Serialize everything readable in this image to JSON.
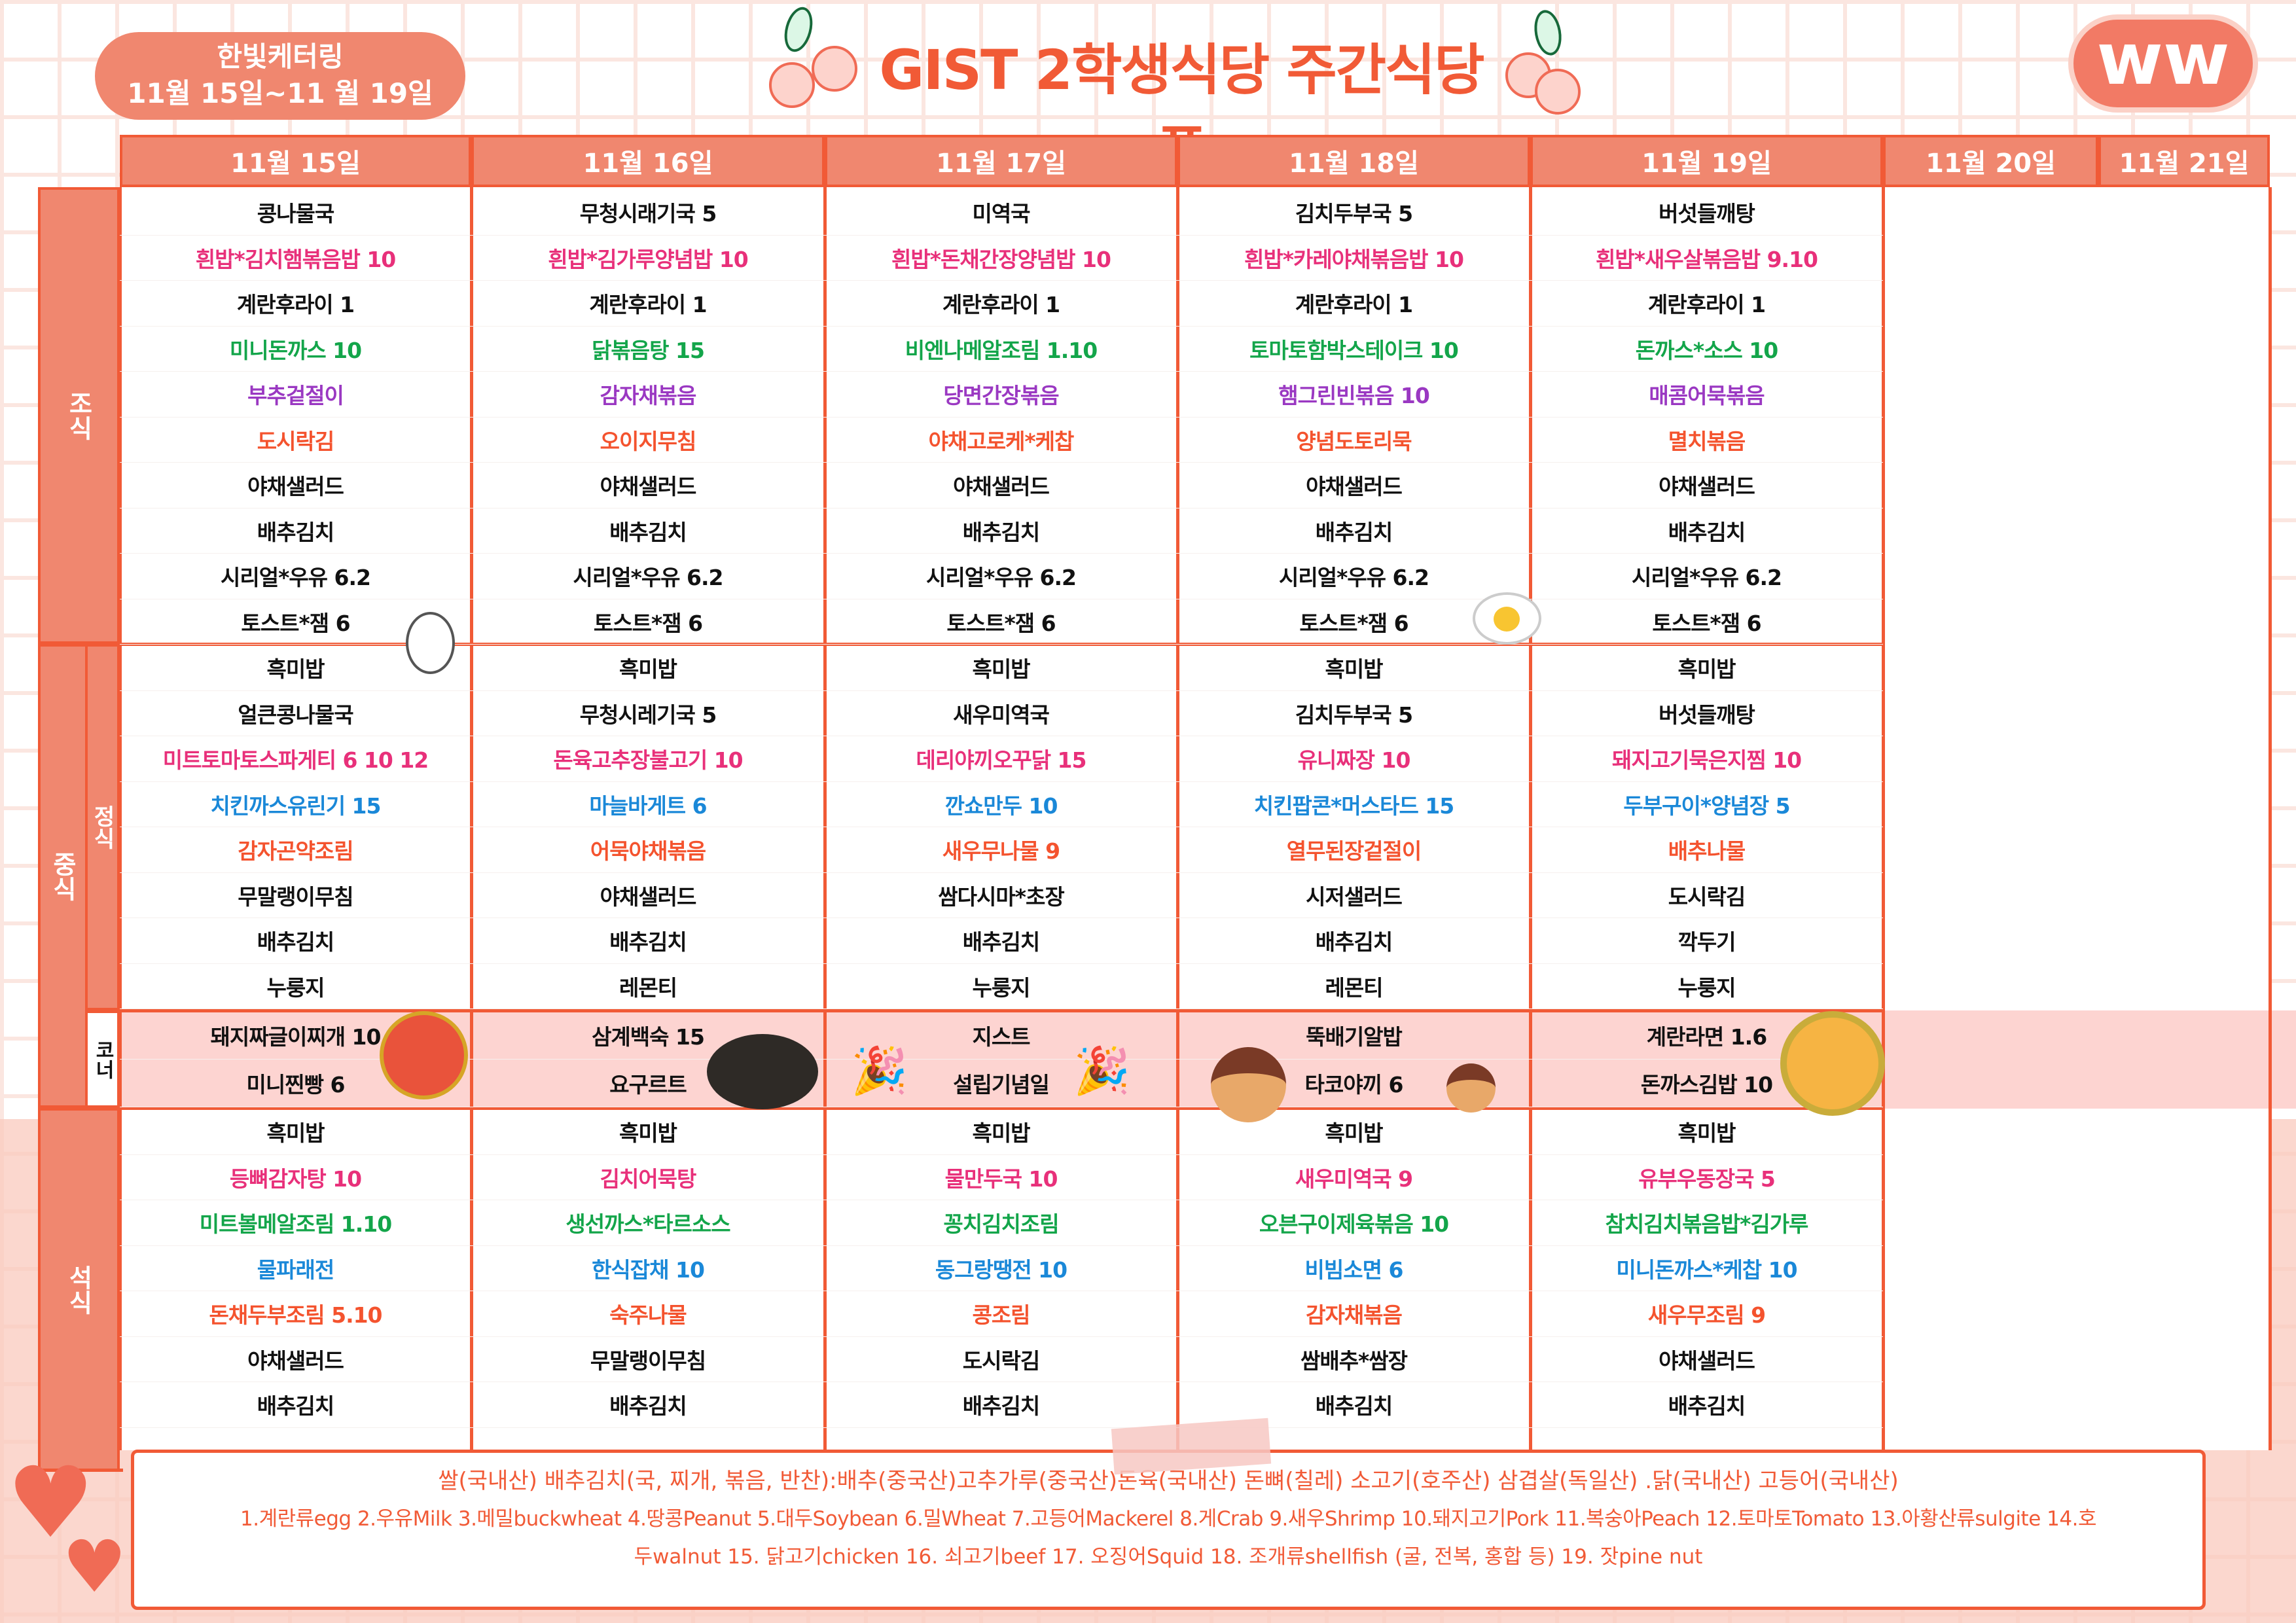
{
  "header": {
    "caterer": "한빛케터링",
    "period": "11월 15일~11 월 19일",
    "title": "GIST 2학생식당 주간식당표",
    "logo_text": "ww"
  },
  "colors": {
    "k": "#111111",
    "p": "#e8307a",
    "g": "#13a54a",
    "v": "#9a38c2",
    "o": "#f4532e",
    "b": "#1a88d8",
    "accent": "#f15a36",
    "header_fill": "#f0876f",
    "corner_fill": "#fdd4d1"
  },
  "days": [
    "11월 15일",
    "11월 16일",
    "11월 17일",
    "11월 18일",
    "11월 19일",
    "11월 20일",
    "11월 21일"
  ],
  "labels": {
    "breakfast": "조식",
    "lunch": "중식",
    "lunch_set": "정식",
    "lunch_corner": "코너",
    "dinner": "석식"
  },
  "breakfast": [
    [
      [
        "콩나물국",
        "k"
      ],
      [
        "흰밥*김치햄볶음밥 10",
        "p"
      ],
      [
        "계란후라이 1",
        "k"
      ],
      [
        "미니돈까스 10",
        "g"
      ],
      [
        "부추겉절이",
        "v"
      ],
      [
        "도시락김",
        "o"
      ],
      [
        "야채샐러드",
        "k"
      ],
      [
        "배추김치",
        "k"
      ],
      [
        "시리얼*우유 6.2",
        "k"
      ],
      [
        "토스트*잼 6",
        "k"
      ]
    ],
    [
      [
        "무청시래기국 5",
        "k"
      ],
      [
        "흰밥*김가루양념밥 10",
        "p"
      ],
      [
        "계란후라이 1",
        "k"
      ],
      [
        "닭볶음탕 15",
        "g"
      ],
      [
        "감자채볶음",
        "v"
      ],
      [
        "오이지무침",
        "o"
      ],
      [
        "야채샐러드",
        "k"
      ],
      [
        "배추김치",
        "k"
      ],
      [
        "시리얼*우유 6.2",
        "k"
      ],
      [
        "토스트*잼 6",
        "k"
      ]
    ],
    [
      [
        "미역국",
        "k"
      ],
      [
        "흰밥*돈채간장양념밥 10",
        "p"
      ],
      [
        "계란후라이 1",
        "k"
      ],
      [
        "비엔나메알조림 1.10",
        "g"
      ],
      [
        "당면간장볶음",
        "v"
      ],
      [
        "야채고로케*케찹",
        "o"
      ],
      [
        "야채샐러드",
        "k"
      ],
      [
        "배추김치",
        "k"
      ],
      [
        "시리얼*우유 6.2",
        "k"
      ],
      [
        "토스트*잼 6",
        "k"
      ]
    ],
    [
      [
        "김치두부국 5",
        "k"
      ],
      [
        "흰밥*카레야채볶음밥 10",
        "p"
      ],
      [
        "계란후라이 1",
        "k"
      ],
      [
        "토마토함박스테이크 10",
        "g"
      ],
      [
        "햄그린빈볶음 10",
        "v"
      ],
      [
        "양념도토리묵",
        "o"
      ],
      [
        "야채샐러드",
        "k"
      ],
      [
        "배추김치",
        "k"
      ],
      [
        "시리얼*우유 6.2",
        "k"
      ],
      [
        "토스트*잼 6",
        "k"
      ]
    ],
    [
      [
        "버섯들깨탕",
        "k"
      ],
      [
        "흰밥*새우살볶음밥 9.10",
        "p"
      ],
      [
        "계란후라이 1",
        "k"
      ],
      [
        "돈까스*소스 10",
        "g"
      ],
      [
        "매콤어묵볶음",
        "v"
      ],
      [
        "멸치볶음",
        "o"
      ],
      [
        "야채샐러드",
        "k"
      ],
      [
        "배추김치",
        "k"
      ],
      [
        "시리얼*우유 6.2",
        "k"
      ],
      [
        "토스트*잼 6",
        "k"
      ]
    ]
  ],
  "lunch": [
    [
      [
        "흑미밥",
        "k"
      ],
      [
        "얼큰콩나물국",
        "k"
      ],
      [
        "미트토마토스파게티 6 10 12",
        "p"
      ],
      [
        "치킨까스유린기 15",
        "b"
      ],
      [
        "감자곤약조림",
        "o"
      ],
      [
        "무말랭이무침",
        "k"
      ],
      [
        "배추김치",
        "k"
      ],
      [
        "누룽지",
        "k"
      ]
    ],
    [
      [
        "흑미밥",
        "k"
      ],
      [
        "무청시레기국 5",
        "k"
      ],
      [
        "돈육고추장불고기 10",
        "p"
      ],
      [
        "마늘바게트 6",
        "b"
      ],
      [
        "어묵야채볶음",
        "o"
      ],
      [
        "야채샐러드",
        "k"
      ],
      [
        "배추김치",
        "k"
      ],
      [
        "레몬티",
        "k"
      ]
    ],
    [
      [
        "흑미밥",
        "k"
      ],
      [
        "새우미역국",
        "k"
      ],
      [
        "데리야끼오꾸닭 15",
        "p"
      ],
      [
        "깐쇼만두 10",
        "b"
      ],
      [
        "새우무나물 9",
        "o"
      ],
      [
        "쌈다시마*초장",
        "k"
      ],
      [
        "배추김치",
        "k"
      ],
      [
        "누룽지",
        "k"
      ]
    ],
    [
      [
        "흑미밥",
        "k"
      ],
      [
        "김치두부국 5",
        "k"
      ],
      [
        "유니짜장 10",
        "p"
      ],
      [
        "치킨팝콘*머스타드 15",
        "b"
      ],
      [
        "열무된장겉절이",
        "o"
      ],
      [
        "시저샐러드",
        "k"
      ],
      [
        "배추김치",
        "k"
      ],
      [
        "레몬티",
        "k"
      ]
    ],
    [
      [
        "흑미밥",
        "k"
      ],
      [
        "버섯들깨탕",
        "k"
      ],
      [
        "돼지고기묵은지찜 10",
        "p"
      ],
      [
        "두부구이*양념장 5",
        "b"
      ],
      [
        "배추나물",
        "o"
      ],
      [
        "도시락김",
        "k"
      ],
      [
        "깍두기",
        "k"
      ],
      [
        "누룽지",
        "k"
      ]
    ]
  ],
  "corner": [
    [
      [
        "돼지짜글이찌개 10",
        "k"
      ],
      [
        "미니찐빵 6",
        "k"
      ]
    ],
    [
      [
        "삼계백숙 15",
        "k"
      ],
      [
        "요구르트",
        "k"
      ]
    ],
    [
      [
        "지스트",
        "k"
      ],
      [
        "설립기념일",
        "k"
      ]
    ],
    [
      [
        "뚝배기알밥",
        "k"
      ],
      [
        "타코야끼 6",
        "k"
      ]
    ],
    [
      [
        "계란라면 1.6",
        "k"
      ],
      [
        "돈까스김밥 10",
        "k"
      ]
    ]
  ],
  "dinner": [
    [
      [
        "흑미밥",
        "k"
      ],
      [
        "등뼈감자탕 10",
        "p"
      ],
      [
        "미트볼메알조림 1.10",
        "g"
      ],
      [
        "물파래전",
        "b"
      ],
      [
        "돈채두부조림 5.10",
        "o"
      ],
      [
        "야채샐러드",
        "k"
      ],
      [
        "배추김치",
        "k"
      ]
    ],
    [
      [
        "흑미밥",
        "k"
      ],
      [
        "김치어묵탕",
        "p"
      ],
      [
        "생선까스*타르소스",
        "g"
      ],
      [
        "한식잡채 10",
        "b"
      ],
      [
        "숙주나물",
        "o"
      ],
      [
        "무말랭이무침",
        "k"
      ],
      [
        "배추김치",
        "k"
      ]
    ],
    [
      [
        "흑미밥",
        "k"
      ],
      [
        "물만두국 10",
        "p"
      ],
      [
        "꽁치김치조림",
        "g"
      ],
      [
        "동그랑땡전 10",
        "b"
      ],
      [
        "콩조림",
        "o"
      ],
      [
        "도시락김",
        "k"
      ],
      [
        "배추김치",
        "k"
      ]
    ],
    [
      [
        "흑미밥",
        "k"
      ],
      [
        "새우미역국 9",
        "p"
      ],
      [
        "오븐구이제육볶음 10",
        "g"
      ],
      [
        "비빔소면 6",
        "b"
      ],
      [
        "감자채볶음",
        "o"
      ],
      [
        "쌈배추*쌈장",
        "k"
      ],
      [
        "배추김치",
        "k"
      ]
    ],
    [
      [
        "흑미밥",
        "k"
      ],
      [
        "유부우동장국 5",
        "p"
      ],
      [
        "참치김치볶음밥*김가루",
        "g"
      ],
      [
        "미니돈까스*케찹 10",
        "b"
      ],
      [
        "새우무조림 9",
        "o"
      ],
      [
        "야채샐러드",
        "k"
      ],
      [
        "배추김치",
        "k"
      ]
    ]
  ],
  "footer": {
    "origin": "쌀(국내산) 배추김치(국, 찌개, 볶음, 반찬):배추(중국산)고추가루(중국산)돈육(국내산) 돈뼈(칠레) 소고기(호주산) 삼겹살(독일산) .닭(국내산) 고등어(국내산)",
    "allergens_1": "1.계란류egg 2.우유Milk 3.메밀buckwheat 4.땅콩Peanut 5.대두Soybean 6.밀Wheat 7.고등어Mackerel 8.게Crab 9.새우Shrimp 10.돼지고기Pork 11.복숭아Peach 12.토마토Tomato 13.아황산류sulgite 14.호",
    "allergens_2": "두walnut 15. 닭고기chicken 16. 쇠고기beef 17. 오징어Squid 18. 조개류shellfish (굴, 전복, 홍합 등) 19. 잣pine nut"
  }
}
